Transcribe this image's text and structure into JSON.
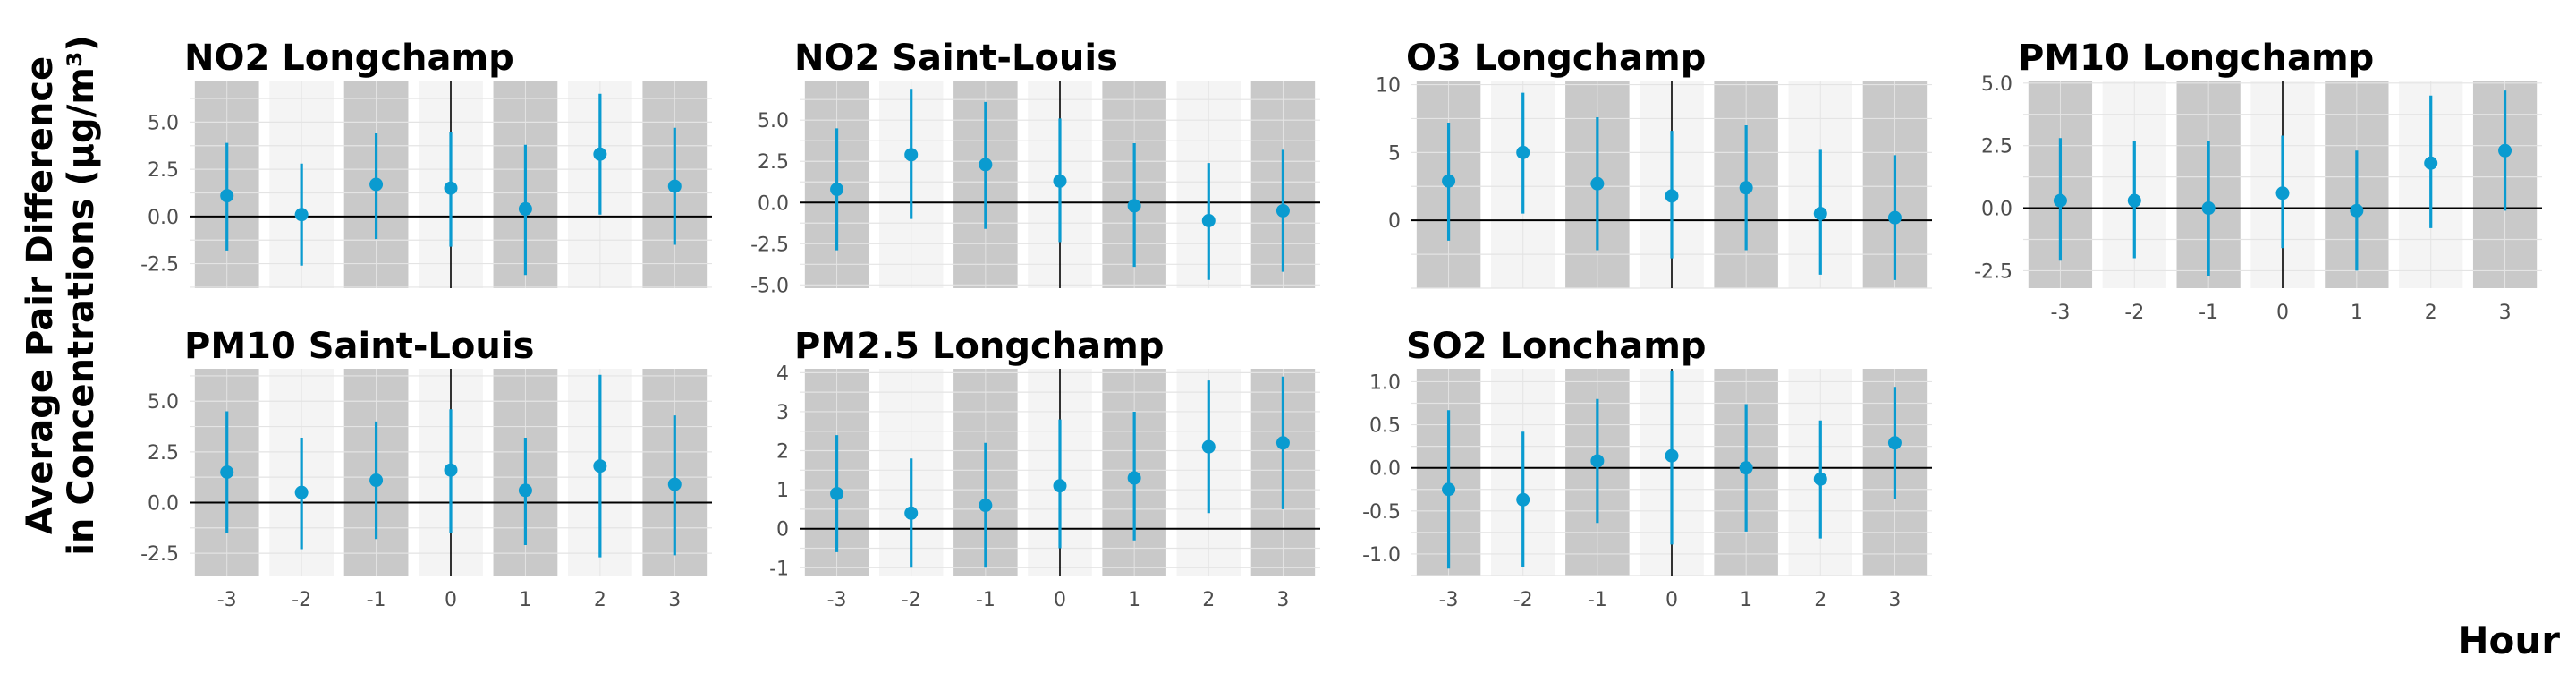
{
  "figure": {
    "ylabel_line1": "Average Pair Difference",
    "ylabel_line2": "in Concentrations (µg/m³)",
    "xlabel": "Hour",
    "colors": {
      "point": "#0a9bd0",
      "band_dark": "#c9c9c9",
      "band_light": "#f4f4f4",
      "grid": "#e4e4e4",
      "zero_line": "#000000"
    }
  },
  "chart_data": [
    {
      "type": "scatter",
      "title": "NO2 Longchamp",
      "x": [
        -3,
        -2,
        -1,
        0,
        1,
        2,
        3
      ],
      "y": [
        1.1,
        0.1,
        1.7,
        1.5,
        0.4,
        3.3,
        1.6
      ],
      "lower": [
        -1.8,
        -2.6,
        -1.2,
        -1.6,
        -3.1,
        0.1,
        -1.5
      ],
      "upper": [
        3.9,
        2.8,
        4.4,
        4.5,
        3.8,
        6.5,
        4.7
      ],
      "ylim": [
        -3.8,
        7.2
      ],
      "yticks": [
        "-2.5",
        "0.0",
        "2.5",
        "5.0"
      ],
      "ytick_values": [
        -2.5,
        0,
        2.5,
        5
      ],
      "xticks": [],
      "grid": true
    },
    {
      "type": "scatter",
      "title": "NO2 Saint-Louis",
      "x": [
        -3,
        -2,
        -1,
        0,
        1,
        2,
        3
      ],
      "y": [
        0.8,
        2.9,
        2.3,
        1.3,
        -0.2,
        -1.1,
        -0.5
      ],
      "lower": [
        -2.9,
        -1.0,
        -1.6,
        -2.4,
        -3.9,
        -4.7,
        -4.2
      ],
      "upper": [
        4.5,
        6.9,
        6.1,
        5.1,
        3.6,
        2.4,
        3.2
      ],
      "ylim": [
        -5.2,
        7.4
      ],
      "yticks": [
        "-5.0",
        "-2.5",
        "0.0",
        "2.5",
        "5.0"
      ],
      "ytick_values": [
        -5,
        -2.5,
        0,
        2.5,
        5
      ],
      "xticks": [],
      "grid": true
    },
    {
      "type": "scatter",
      "title": "O3 Longchamp",
      "x": [
        -3,
        -2,
        -1,
        0,
        1,
        2,
        3
      ],
      "y": [
        2.9,
        5.0,
        2.7,
        1.8,
        2.4,
        0.5,
        0.2
      ],
      "lower": [
        -1.5,
        0.5,
        -2.2,
        -2.8,
        -2.2,
        -4.0,
        -4.4
      ],
      "upper": [
        7.2,
        9.4,
        7.6,
        6.6,
        7.0,
        5.2,
        4.8
      ],
      "ylim": [
        -5.0,
        10.3
      ],
      "yticks": [
        "0",
        "5",
        "10"
      ],
      "ytick_values": [
        0,
        5,
        10
      ],
      "xticks": [],
      "grid": true
    },
    {
      "type": "scatter",
      "title": "PM10 Longchamp",
      "x": [
        -3,
        -2,
        -1,
        0,
        1,
        2,
        3
      ],
      "y": [
        0.3,
        0.3,
        0.0,
        0.6,
        -0.1,
        1.8,
        2.3
      ],
      "lower": [
        -2.1,
        -2.0,
        -2.7,
        -1.6,
        -2.5,
        -0.8,
        -0.1
      ],
      "upper": [
        2.8,
        2.7,
        2.7,
        2.9,
        2.3,
        4.5,
        4.7
      ],
      "ylim": [
        -3.2,
        5.1
      ],
      "yticks": [
        "-2.5",
        "0.0",
        "2.5",
        "5.0"
      ],
      "ytick_values": [
        -2.5,
        0,
        2.5,
        5
      ],
      "xticks": [
        "-3",
        "-2",
        "-1",
        "0",
        "1",
        "2",
        "3"
      ],
      "grid": true
    },
    {
      "type": "scatter",
      "title": "PM10 Saint-Louis",
      "x": [
        -3,
        -2,
        -1,
        0,
        1,
        2,
        3
      ],
      "y": [
        1.5,
        0.5,
        1.1,
        1.6,
        0.6,
        1.8,
        0.9
      ],
      "lower": [
        -1.5,
        -2.3,
        -1.8,
        -1.5,
        -2.1,
        -2.7,
        -2.6
      ],
      "upper": [
        4.5,
        3.2,
        4.0,
        4.6,
        3.2,
        6.3,
        4.3
      ],
      "ylim": [
        -3.6,
        6.6
      ],
      "yticks": [
        "-2.5",
        "0.0",
        "2.5",
        "5.0"
      ],
      "ytick_values": [
        -2.5,
        0,
        2.5,
        5
      ],
      "xticks": [
        "-3",
        "-2",
        "-1",
        "0",
        "1",
        "2",
        "3"
      ],
      "grid": true
    },
    {
      "type": "scatter",
      "title": "PM2.5 Longchamp",
      "x": [
        -3,
        -2,
        -1,
        0,
        1,
        2,
        3
      ],
      "y": [
        0.9,
        0.4,
        0.6,
        1.1,
        1.3,
        2.1,
        2.2
      ],
      "lower": [
        -0.6,
        -1.0,
        -1.0,
        -0.5,
        -0.3,
        0.4,
        0.5
      ],
      "upper": [
        2.4,
        1.8,
        2.2,
        2.8,
        3.0,
        3.8,
        3.9
      ],
      "ylim": [
        -1.2,
        4.1
      ],
      "yticks": [
        "-1",
        "0",
        "1",
        "2",
        "3",
        "4"
      ],
      "ytick_values": [
        -1,
        0,
        1,
        2,
        3,
        4
      ],
      "xticks": [
        "-3",
        "-2",
        "-1",
        "0",
        "1",
        "2",
        "3"
      ],
      "grid": true
    },
    {
      "type": "scatter",
      "title": "SO2 Lonchamp",
      "x": [
        -3,
        -2,
        -1,
        0,
        1,
        2,
        3
      ],
      "y": [
        -0.25,
        -0.37,
        0.08,
        0.14,
        0.0,
        -0.13,
        0.29
      ],
      "lower": [
        -1.17,
        -1.15,
        -0.64,
        -0.89,
        -0.74,
        -0.82,
        -0.36
      ],
      "upper": [
        0.67,
        0.42,
        0.8,
        1.13,
        0.74,
        0.55,
        0.94
      ],
      "ylim": [
        -1.25,
        1.15
      ],
      "yticks": [
        "-1.0",
        "-0.5",
        "0.0",
        "0.5",
        "1.0"
      ],
      "ytick_values": [
        -1,
        -0.5,
        0,
        0.5,
        1
      ],
      "xticks": [
        "-3",
        "-2",
        "-1",
        "0",
        "1",
        "2",
        "3"
      ],
      "grid": true
    }
  ]
}
